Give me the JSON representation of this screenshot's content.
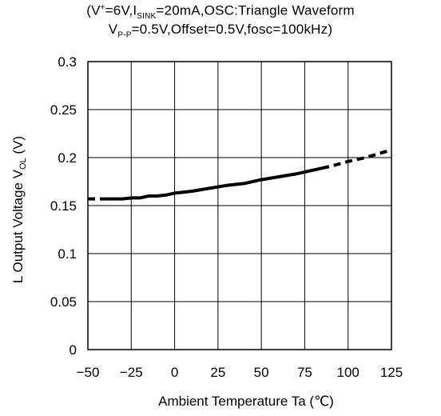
{
  "conditions": {
    "line1_v": "V",
    "line1_v_sup": "+",
    "line1_mid": "=6V,I",
    "line1_isink_sub": "SINK",
    "line1_rest": "=20mA,OSC:Triangle Waveform",
    "line2_v": "V",
    "line2_vpp_sub": "P-P",
    "line2_rest": "=0.5V,Offset=0.5V,fosc=100kHz)",
    "open_paren": "("
  },
  "chart_data": {
    "type": "line",
    "xlabel": "Ambient Temperature  Ta  (℃)",
    "ylabel_prefix": "L Output Voltage  V",
    "ylabel_sub": "OL",
    "ylabel_unit": "  (V)",
    "xlim": [
      -50,
      125
    ],
    "ylim": [
      0,
      0.3
    ],
    "x_ticks": [
      "-50",
      "-25",
      "0",
      "25",
      "50",
      "75",
      "100",
      "125"
    ],
    "x_tick_values": [
      -50,
      -25,
      0,
      25,
      50,
      75,
      100,
      125
    ],
    "y_ticks": [
      "0",
      "0.05",
      "0.1",
      "0.15",
      "0.2",
      "0.25",
      "0.3"
    ],
    "y_tick_values": [
      0,
      0.05,
      0.1,
      0.15,
      0.2,
      0.25,
      0.3
    ],
    "grid": true,
    "series": [
      {
        "style": "solid",
        "x": [
          -40,
          -30,
          -25,
          -20,
          -15,
          -10,
          -5,
          0,
          5,
          10,
          20,
          30,
          40,
          45,
          50,
          60,
          70,
          80,
          85
        ],
        "y": [
          0.157,
          0.157,
          0.158,
          0.158,
          0.16,
          0.16,
          0.161,
          0.163,
          0.164,
          0.165,
          0.168,
          0.171,
          0.173,
          0.175,
          0.177,
          0.18,
          0.183,
          0.187,
          0.189
        ]
      },
      {
        "style": "dashed",
        "x": [
          -50,
          -40
        ],
        "y": [
          0.157,
          0.157
        ]
      },
      {
        "style": "dashed",
        "x": [
          85,
          90,
          100,
          110,
          125
        ],
        "y": [
          0.189,
          0.191,
          0.196,
          0.2,
          0.208
        ]
      }
    ]
  }
}
